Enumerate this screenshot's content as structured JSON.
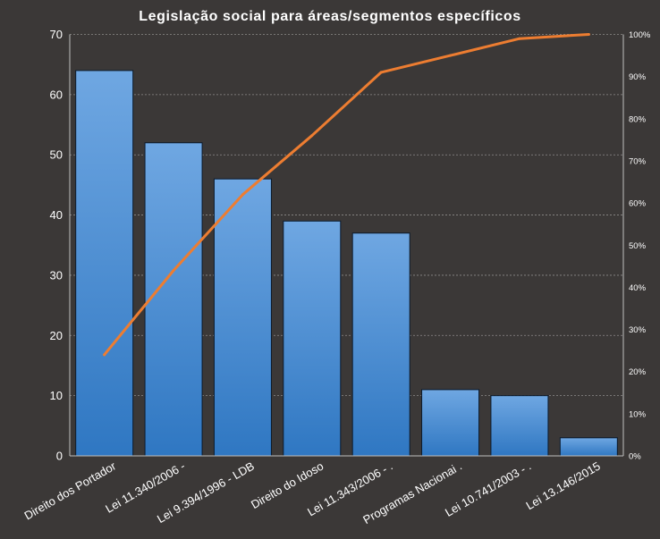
{
  "chart_data": {
    "type": "bar",
    "title": "Legislação social para áreas/segmentos específicos",
    "categories": [
      "Direito dos Portador",
      "Lei 11.340/2006  -",
      "Lei 9.394/1996 - LDB",
      "Direito do Idoso",
      "Lei 11.343/2006  - .",
      "Programas Nacionai .",
      "Lei 10.741/2003  - .",
      "Lei 13.146/2015"
    ],
    "series": [
      {
        "type": "bar",
        "values": [
          64,
          52,
          46,
          39,
          37,
          11,
          10,
          3
        ]
      },
      {
        "type": "line",
        "axis": "right",
        "values": [
          24,
          44,
          62,
          76,
          91,
          95,
          99,
          100
        ]
      }
    ],
    "ylim": [
      0,
      70
    ],
    "yticks": [
      "0",
      "10",
      "20",
      "30",
      "40",
      "50",
      "60",
      "70"
    ],
    "y2lim": [
      0,
      100
    ],
    "y2ticks": [
      "0%",
      "10%",
      "20%",
      "30%",
      "40%",
      "50%",
      "60%",
      "70%",
      "80%",
      "90%",
      "100%"
    ],
    "xlabel": "",
    "ylabel": "",
    "grid": true,
    "colors": {
      "background": "#3b3837",
      "bar_top": "#6fa7e2",
      "bar_bottom": "#2f77c2",
      "line": "#ed7d31"
    }
  }
}
